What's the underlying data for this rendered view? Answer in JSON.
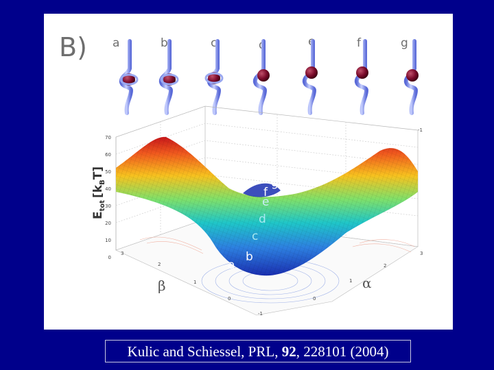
{
  "figure": {
    "panel_label": "B)",
    "conformation_labels": [
      "a",
      "b",
      "c",
      "d",
      "e",
      "f",
      "g"
    ],
    "zlabel_main": "E",
    "zlabel_sub": "tot",
    "zlabel_unit_open": "[k",
    "zlabel_unit_sub": "B",
    "zlabel_unit_close": "T]",
    "beta_label": "β",
    "alpha_label": "α",
    "z_ticks": [
      "70",
      "60",
      "50",
      "40",
      "30",
      "20",
      "10",
      "0"
    ],
    "beta_ticks": [
      "3",
      "2",
      "1",
      "0"
    ],
    "alpha_ticks": [
      "3",
      "2",
      "1",
      "0",
      "-1"
    ],
    "back_ticks": [
      "-1"
    ],
    "surface_labels": [
      "a",
      "b",
      "c",
      "d",
      "e",
      "f",
      "g"
    ],
    "colors": {
      "slide_bg": "#00008b",
      "panel_bg": "#ffffff",
      "bead": "#7a0a2a",
      "rod": "#8fa0ee"
    }
  },
  "citation": {
    "authors": "Kulic and Schiessel, PRL,",
    "volume": "92",
    "rest": ", 228101 (2004)"
  }
}
